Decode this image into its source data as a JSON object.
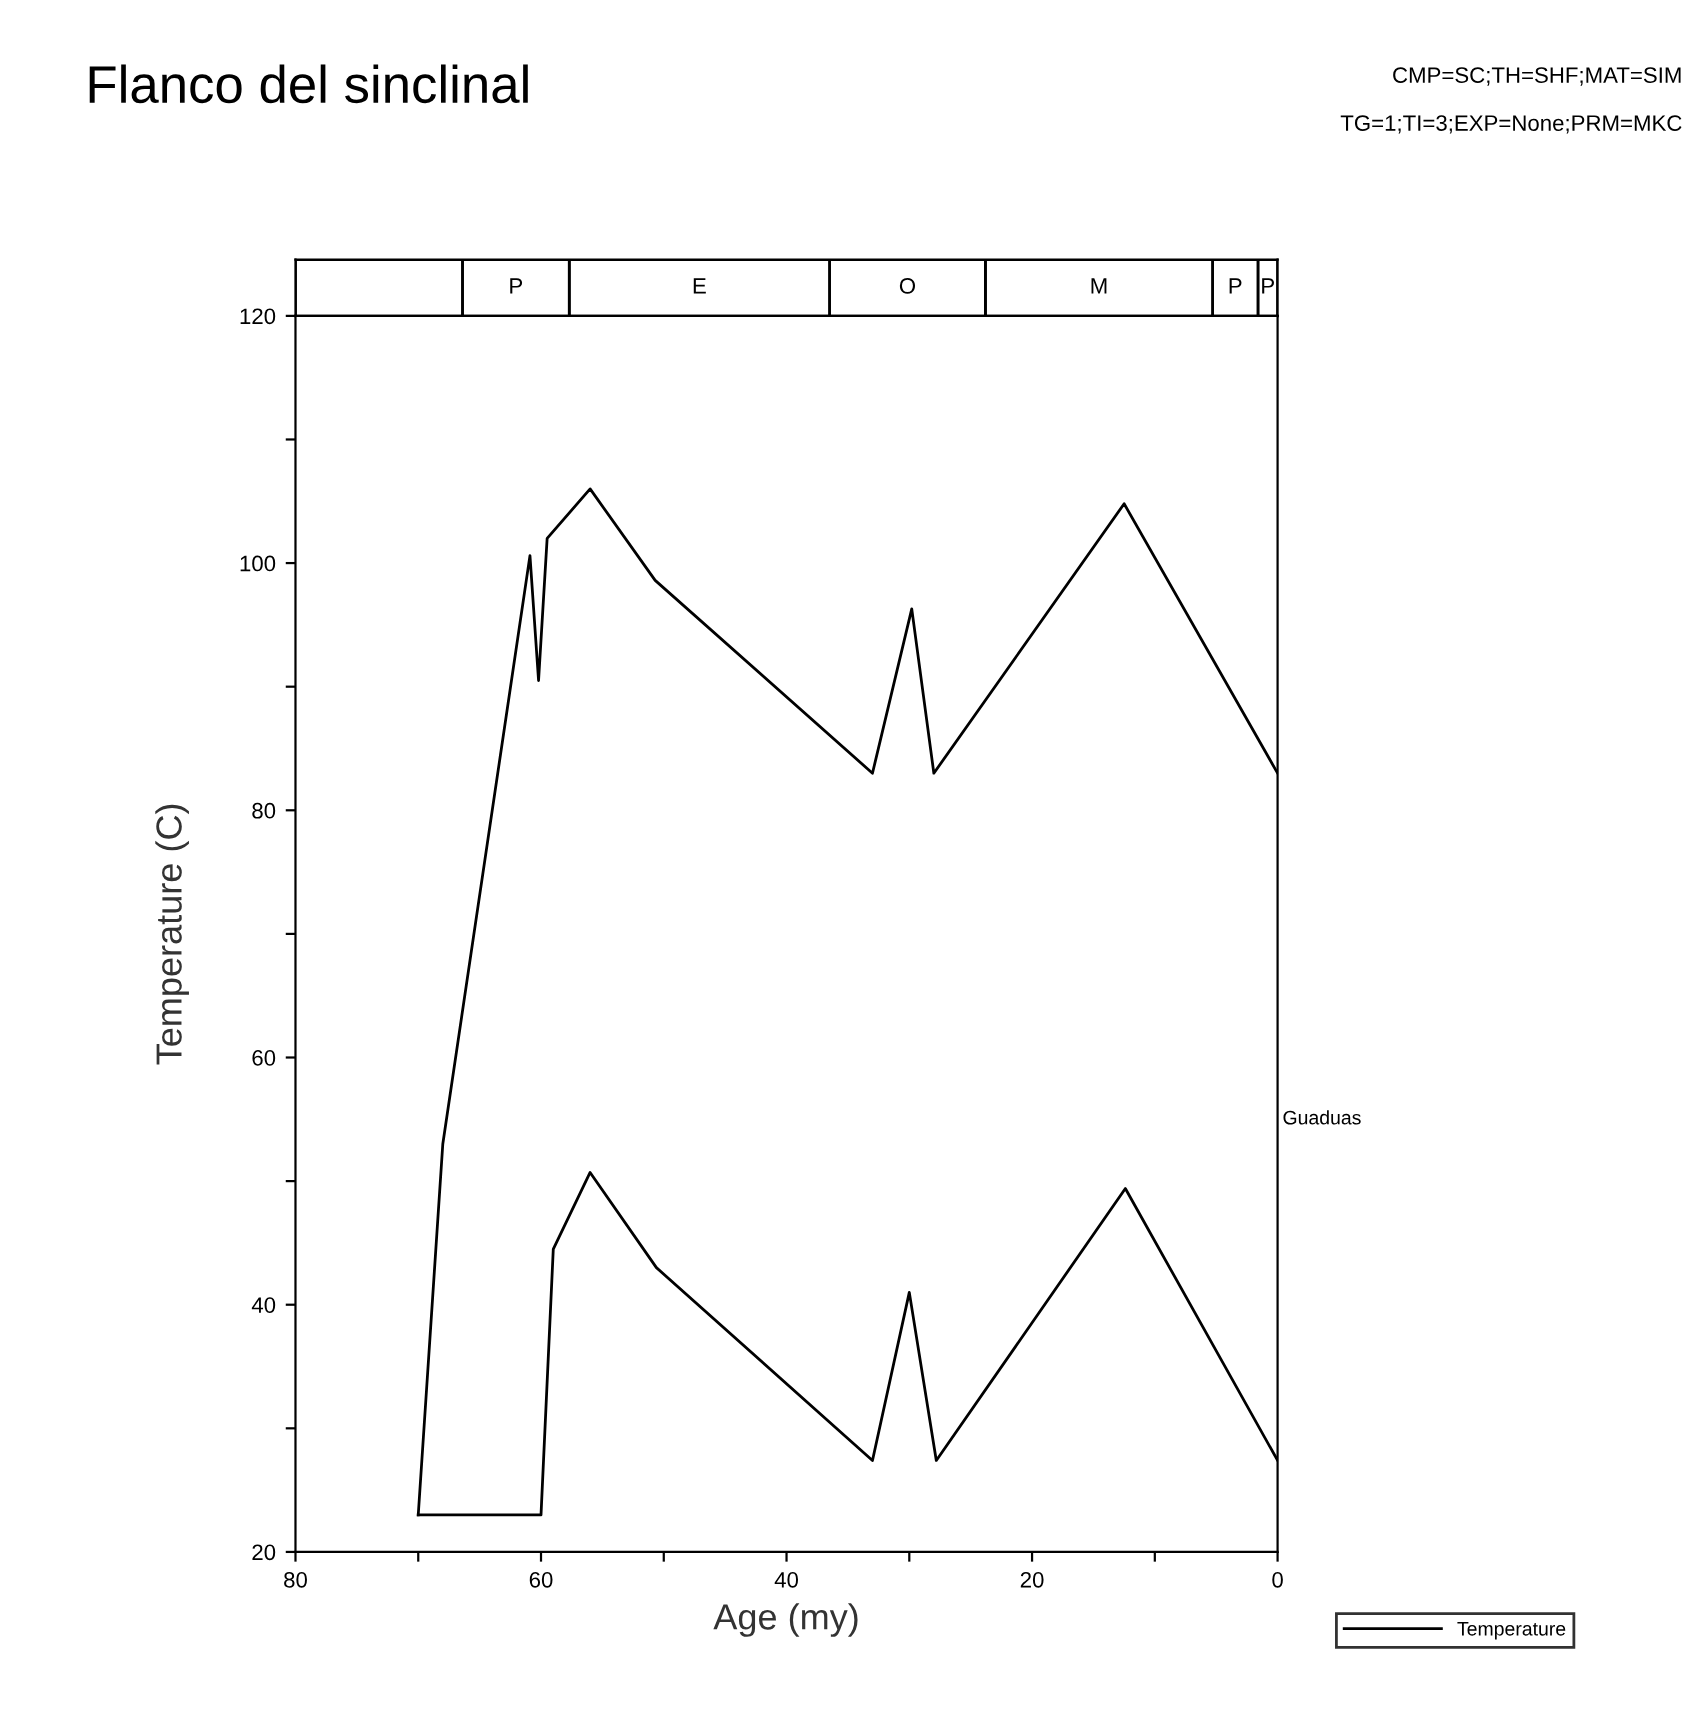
{
  "chart_data": [
    {
      "type": "bar",
      "title": "Flanco del sinclinal",
      "orientation": "horizontal",
      "stacked": true,
      "categories": [
        null
      ],
      "xlim": [
        80,
        0
      ],
      "tick_labels": false,
      "series": [
        {
          "name": "P",
          "color": "#ffffff",
          "values": [
            1.6
          ]
        },
        {
          "name": "P",
          "color": "#ffffff",
          "values": [
            3.7
          ]
        },
        {
          "name": "M",
          "color": "#ffffff",
          "values": [
            18.5
          ]
        },
        {
          "name": "O",
          "color": "#ffffff",
          "values": [
            12.7
          ]
        },
        {
          "name": "E",
          "color": "#ffffff",
          "values": [
            21.2
          ]
        },
        {
          "name": "P",
          "color": "#ffffff",
          "values": [
            8.7
          ]
        },
        {
          "color": "#ffffff",
          "values": [
            13.6
          ]
        }
      ]
    },
    {
      "type": "line",
      "xlabel": "Age (my)",
      "ylabel": "Temperature (C)",
      "annotations": [
        "CMP=SC;TH=SHF;MAT=SIM",
        "TG=1;TI=3;EXP=None;PRM=MKC",
        "Guaduas"
      ],
      "series": [
        {
          "name": "Temperature",
          "color": "#000000",
          "x": [
            70,
            68,
            60.9,
            60.2,
            59.5,
            56,
            50.7,
            33,
            29.8,
            28,
            12.5,
            0
          ],
          "values": [
            23,
            53,
            100.6,
            90.5,
            102,
            106,
            98.6,
            83,
            96.3,
            83,
            104.8,
            83
          ]
        },
        {
          "color": "#000000",
          "x": [
            70,
            60,
            59,
            56,
            50.6,
            33,
            30,
            27.8,
            12.4,
            0
          ],
          "values": [
            23,
            23,
            44.5,
            50.7,
            43,
            27.4,
            41,
            27.4,
            49.4,
            27.4
          ]
        }
      ],
      "xlim": [
        80,
        0
      ],
      "ylim": [
        20,
        120
      ],
      "xticks": [
        80,
        {
          "value": 70,
          "label": null
        },
        60,
        {
          "value": 50,
          "label": null
        },
        40,
        {
          "value": 30,
          "label": null
        },
        20,
        {
          "value": 10,
          "label": null
        },
        0
      ],
      "yticks": [
        20,
        {
          "value": 30,
          "label": null
        },
        40,
        {
          "value": 50,
          "label": null
        },
        60,
        {
          "value": 70,
          "label": null
        },
        80,
        {
          "value": 90,
          "label": null
        },
        100,
        {
          "value": 110,
          "label": null
        },
        120
      ],
      "grid": false,
      "legend": "bottom right",
      "marker": "none",
      "line_style": "solid"
    }
  ]
}
